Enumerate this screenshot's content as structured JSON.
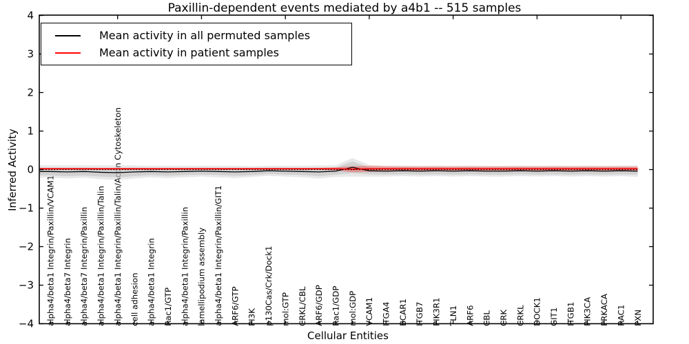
{
  "figure": {
    "title": "Paxillin-dependent events mediated by a4b1 -- 515 samples",
    "xlabel": "Cellular Entities",
    "ylabel": "Inferred Activity"
  },
  "legend": {
    "items": [
      {
        "label": "Mean activity in all permuted samples",
        "color": "#000000"
      },
      {
        "label": "Mean activity in patient samples",
        "color": "#ff0000"
      }
    ]
  },
  "chart_data": {
    "type": "line",
    "title": "Paxillin-dependent events mediated by a4b1 -- 515 samples",
    "xlabel": "Cellular Entities",
    "ylabel": "Inferred Activity",
    "ylim": [
      -4,
      4
    ],
    "yticks": [
      4,
      3,
      2,
      1,
      0,
      -1,
      -2,
      -3,
      -4
    ],
    "grid": false,
    "legend_position": "upper left",
    "zero_line": true,
    "categories": [
      "alpha4/beta1 Integrin/Paxillin/VCAM1",
      "alpha4/beta7 Integrin",
      "alpha4/beta7 Integrin/Paxillin",
      "alpha4/beta1 Integrin/Paxillin/Talin",
      "alpha4/beta1 Integrin/Paxillin/Talin/Actin Cytoskeleton",
      "cell adhesion",
      "alpha4/beta1 Integrin",
      "Rac1/GTP",
      "alpha4/beta1 Integrin/Paxillin",
      "lamellipodium assembly",
      "alpha4/beta1 Integrin/Paxillin/GIT1",
      "ARF6/GTP",
      "PI3K",
      "p130Cas/Crk/Dock1",
      "mol:GTP",
      "CRKL/CBL",
      "ARF6/GDP",
      "Rac1/GDP",
      "mol:GDP",
      "VCAM1",
      "ITGA4",
      "BCAR1",
      "ITGB7",
      "PIK3R1",
      "TLN1",
      "ARF6",
      "CBL",
      "CRK",
      "CRKL",
      "DOCK1",
      "GIT1",
      "ITGB1",
      "PIK3CA",
      "PRKACA",
      "RAC1",
      "PXN"
    ],
    "series": [
      {
        "name": "Mean activity in all permuted samples",
        "color": "#000000",
        "stroke_width": 1.3,
        "values": [
          -0.05,
          -0.06,
          -0.05,
          -0.07,
          -0.08,
          -0.06,
          -0.05,
          -0.06,
          -0.05,
          -0.04,
          -0.05,
          -0.06,
          -0.05,
          -0.03,
          -0.04,
          -0.05,
          -0.06,
          -0.04,
          0.06,
          -0.03,
          -0.04,
          -0.03,
          -0.04,
          -0.03,
          -0.04,
          -0.03,
          -0.04,
          -0.04,
          -0.03,
          -0.04,
          -0.03,
          -0.04,
          -0.03,
          -0.04,
          -0.03,
          -0.04
        ]
      },
      {
        "name": "Mean activity in patient samples",
        "color": "#ff0000",
        "stroke_width": 1.8,
        "values": [
          0.02,
          0.02,
          0.02,
          0.02,
          0.02,
          0.02,
          0.02,
          0.02,
          0.02,
          0.02,
          0.02,
          0.02,
          0.02,
          0.02,
          0.02,
          0.02,
          0.02,
          0.02,
          0.01,
          0.02,
          0.02,
          0.02,
          0.02,
          0.02,
          0.02,
          0.02,
          0.02,
          0.02,
          0.02,
          0.02,
          0.02,
          0.02,
          0.02,
          0.02,
          0.02,
          0.02
        ]
      }
    ],
    "bands": [
      {
        "name": "permuted-range-outer",
        "series": 0,
        "color": "#bdbdbd",
        "opacity": 0.35,
        "half_widths": [
          0.16,
          0.17,
          0.16,
          0.18,
          0.19,
          0.17,
          0.15,
          0.16,
          0.15,
          0.14,
          0.15,
          0.16,
          0.14,
          0.13,
          0.14,
          0.15,
          0.17,
          0.15,
          0.24,
          0.15,
          0.14,
          0.14,
          0.14,
          0.14,
          0.14,
          0.14,
          0.14,
          0.14,
          0.14,
          0.14,
          0.14,
          0.14,
          0.14,
          0.14,
          0.14,
          0.15
        ]
      },
      {
        "name": "permuted-range-inner",
        "series": 0,
        "color": "#bdbdbd",
        "opacity": 0.55,
        "half_widths": [
          0.1,
          0.11,
          0.1,
          0.11,
          0.12,
          0.11,
          0.09,
          0.1,
          0.09,
          0.09,
          0.09,
          0.1,
          0.09,
          0.08,
          0.09,
          0.09,
          0.11,
          0.09,
          0.15,
          0.09,
          0.09,
          0.09,
          0.09,
          0.09,
          0.09,
          0.09,
          0.09,
          0.09,
          0.09,
          0.09,
          0.09,
          0.09,
          0.09,
          0.09,
          0.09,
          0.09
        ]
      },
      {
        "name": "patient-range",
        "series": 1,
        "color": "#ff0000",
        "opacity": 0.28,
        "half_widths": [
          0.025,
          0.025,
          0.025,
          0.025,
          0.025,
          0.025,
          0.025,
          0.025,
          0.025,
          0.025,
          0.025,
          0.025,
          0.025,
          0.025,
          0.025,
          0.025,
          0.025,
          0.04,
          0.08,
          0.08,
          0.07,
          0.06,
          0.06,
          0.06,
          0.06,
          0.06,
          0.06,
          0.06,
          0.06,
          0.06,
          0.06,
          0.06,
          0.06,
          0.06,
          0.06,
          0.06
        ]
      }
    ]
  }
}
